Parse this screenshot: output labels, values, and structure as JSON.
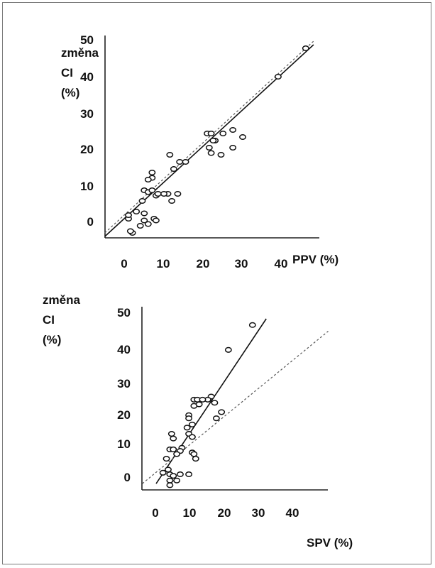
{
  "chart_data": [
    {
      "type": "scatter",
      "xlabel": "PPV (%)",
      "ylabel": [
        "změna",
        "CI",
        "(%)"
      ],
      "xticks": [
        "0",
        "10",
        "20",
        "30",
        "40"
      ],
      "yticks": [
        "50",
        "40",
        "30",
        "20",
        "10",
        "0"
      ],
      "xlim": [
        -5,
        48
      ],
      "ylim": [
        -5,
        50
      ],
      "grid": false,
      "points": [
        [
          46,
          48
        ],
        [
          39,
          40
        ],
        [
          27.5,
          25
        ],
        [
          30,
          23
        ],
        [
          27.5,
          20
        ],
        [
          25,
          24
        ],
        [
          24.5,
          18
        ],
        [
          21,
          24
        ],
        [
          22,
          24
        ],
        [
          23,
          22
        ],
        [
          21.5,
          20
        ],
        [
          22,
          18.5
        ],
        [
          22.5,
          22
        ],
        [
          15.5,
          16
        ],
        [
          14,
          16
        ],
        [
          11.5,
          18
        ],
        [
          12.5,
          14
        ],
        [
          11,
          7
        ],
        [
          13.5,
          7
        ],
        [
          12,
          5
        ],
        [
          10,
          7
        ],
        [
          7,
          13
        ],
        [
          7,
          11.5
        ],
        [
          6,
          11
        ],
        [
          5,
          8
        ],
        [
          6,
          7.5
        ],
        [
          7,
          8
        ],
        [
          8,
          6.5
        ],
        [
          8.5,
          7
        ],
        [
          4.5,
          5
        ],
        [
          3,
          2
        ],
        [
          5,
          1.5
        ],
        [
          5,
          -0.5
        ],
        [
          7.5,
          0
        ],
        [
          8,
          -0.5
        ],
        [
          6,
          -1.5
        ],
        [
          4,
          -2
        ],
        [
          2,
          -4
        ],
        [
          1.5,
          -3.5
        ],
        [
          1,
          0
        ],
        [
          1,
          1
        ]
      ],
      "lines": [
        {
          "style": "solid",
          "from": [
            -5,
            -5
          ],
          "to": [
            48,
            49
          ]
        },
        {
          "style": "dashed",
          "from": [
            -5,
            -4
          ],
          "to": [
            48,
            50
          ]
        }
      ]
    },
    {
      "type": "scatter",
      "xlabel": "SPV (%)",
      "ylabel": [
        "změna",
        "CI",
        "(%)"
      ],
      "xticks": [
        "0",
        "10",
        "20",
        "30",
        "40"
      ],
      "yticks": [
        "50",
        "40",
        "30",
        "20",
        "10",
        "0"
      ],
      "xlim": [
        -4,
        50
      ],
      "ylim": [
        -5,
        50
      ],
      "grid": false,
      "points": [
        [
          28,
          48
        ],
        [
          21,
          40
        ],
        [
          16,
          25
        ],
        [
          15,
          24
        ],
        [
          17,
          23
        ],
        [
          19,
          20
        ],
        [
          17.5,
          18
        ],
        [
          11,
          24
        ],
        [
          12,
          24
        ],
        [
          11,
          22
        ],
        [
          12.5,
          22.5
        ],
        [
          13.5,
          24
        ],
        [
          9.5,
          19
        ],
        [
          9.5,
          18
        ],
        [
          10.5,
          16
        ],
        [
          9,
          15
        ],
        [
          9.5,
          13
        ],
        [
          4.5,
          13
        ],
        [
          5,
          11.5
        ],
        [
          10.5,
          12
        ],
        [
          7.5,
          8.5
        ],
        [
          7,
          7.5
        ],
        [
          10.5,
          7
        ],
        [
          11,
          6.5
        ],
        [
          11.5,
          5
        ],
        [
          4,
          8
        ],
        [
          5,
          8
        ],
        [
          6,
          6.5
        ],
        [
          3,
          5
        ],
        [
          9.5,
          0
        ],
        [
          7,
          0
        ],
        [
          2,
          0.5
        ],
        [
          3.5,
          1.5
        ],
        [
          4,
          0
        ],
        [
          5,
          -0.5
        ],
        [
          6,
          -2
        ],
        [
          4,
          -2
        ],
        [
          4,
          -3.5
        ]
      ],
      "lines": [
        {
          "style": "solid",
          "from": [
            0,
            -3
          ],
          "to": [
            32,
            50
          ]
        },
        {
          "style": "dashed",
          "from": [
            -4,
            -3
          ],
          "to": [
            50,
            46
          ]
        }
      ]
    }
  ]
}
